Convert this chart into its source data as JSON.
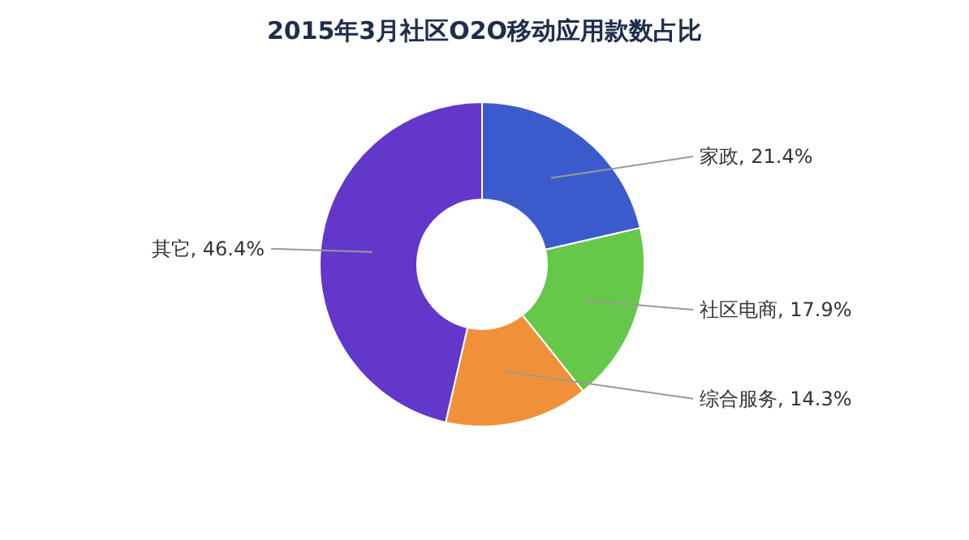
{
  "chart_data": {
    "type": "donut",
    "title": "2015年3月社区O2O移动应用款数占比",
    "categories": [
      "家政",
      "社区电商",
      "综合服务",
      "其它"
    ],
    "values": [
      21.4,
      17.9,
      14.3,
      46.4
    ],
    "value_labels": [
      "21.4%",
      "17.9%",
      "14.3%",
      "46.4%"
    ],
    "colors": [
      "#3b5bcd",
      "#66c84a",
      "#f0913a",
      "#6337c9"
    ]
  }
}
